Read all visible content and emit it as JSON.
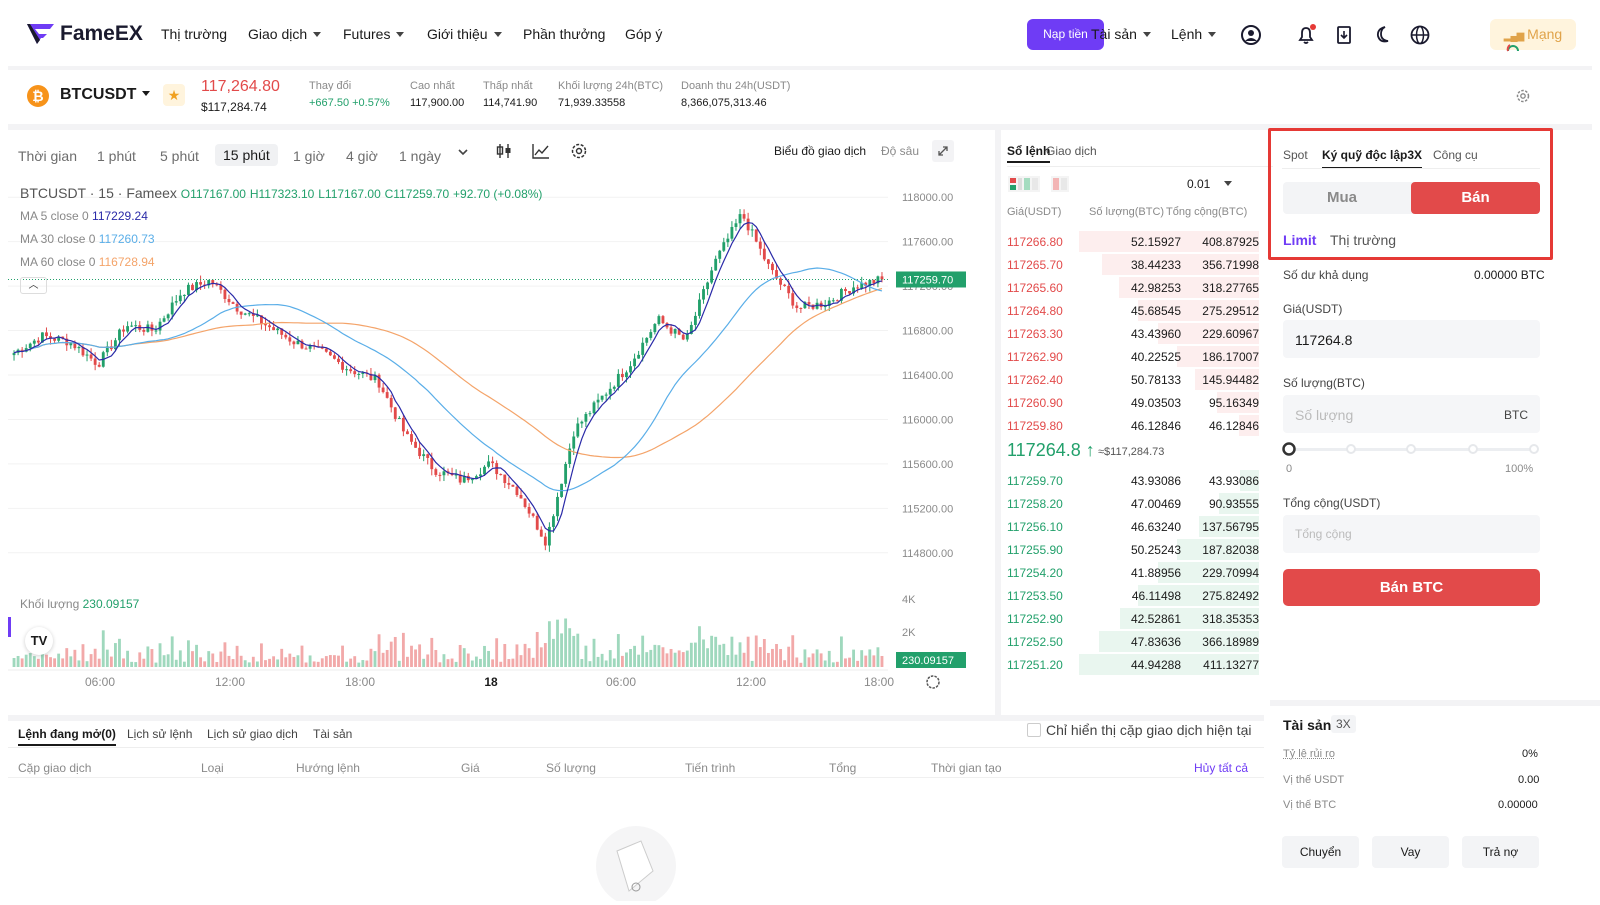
{
  "nav": {
    "brand": "FameEX",
    "items": [
      "Thị trường",
      "Giao dịch",
      "Futures",
      "Giới thiệu",
      "Phần thưởng",
      "Góp ý"
    ],
    "deposit": "Nạp tiền",
    "assets": "Tài sản",
    "orders": "Lệnh",
    "network": "Mạng"
  },
  "ticker": {
    "pair": "BTCUSDT",
    "price": "117,264.80",
    "price_usd": "$117,284.74",
    "change_label": "Thay đổi",
    "change_value": "+667.50 +0.57%",
    "high_label": "Cao nhất",
    "high_value": "117,900.00",
    "low_label": "Thấp nhất",
    "low_value": "114,741.90",
    "vol_label": "Khối lượng 24h(BTC)",
    "vol_value": "71,939.33558",
    "turnover_label": "Doanh thu 24h(USDT)",
    "turnover_value": "8,366,075,313.46"
  },
  "chart": {
    "timeframes": [
      "Thời gian",
      "1 phút",
      "5 phút",
      "15 phút",
      "1 giờ",
      "4 giờ",
      "1 ngày"
    ],
    "active_timeframe": "15 phút",
    "tab_trading": "Biểu đồ giao dịch",
    "tab_depth": "Độ sâu",
    "ohlc": {
      "symbol": "BTCUSDT · 15 · Fameex",
      "o": "O117167.00",
      "h": "H117323.10",
      "l": "L117167.00",
      "c": "C117259.70",
      "chg": "+92.70 (+0.08%)"
    },
    "ma5": {
      "label": "MA 5 close 0",
      "value": "117229.24",
      "color": "#2a2aa8"
    },
    "ma30": {
      "label": "MA 30 close 0",
      "value": "117260.73",
      "color": "#5aaee8"
    },
    "ma60": {
      "label": "MA 60 close 0",
      "value": "116728.94",
      "color": "#f4a46a"
    },
    "volume": {
      "label": "Khối lượng",
      "value": "230.09157"
    },
    "price_axis": [
      "118000.00",
      "117600.00",
      "117200.00",
      "116800.00",
      "116400.00",
      "116000.00",
      "115600.00",
      "115200.00",
      "114800.00"
    ],
    "vol_axis": [
      "4K",
      "2K"
    ],
    "time_axis": [
      "06:00",
      "12:00",
      "18:00",
      "18",
      "06:00",
      "12:00",
      "18:00"
    ],
    "last_price_tag": "117259.70",
    "last_vol_tag": "230.09157"
  },
  "chart_data": {
    "type": "candlestick",
    "series": [
      {
        "name": "MA 5 close 0",
        "value": 117229.24
      },
      {
        "name": "MA 30 close 0",
        "value": 117260.73
      },
      {
        "name": "MA 60 close 0",
        "value": 116728.94
      }
    ],
    "ylim": [
      114600,
      118200
    ],
    "x": [
      "06:00",
      "12:00",
      "18:00",
      "18",
      "06:00",
      "12:00",
      "18:00"
    ],
    "close_trend": [
      116600,
      116750,
      116700,
      116500,
      116850,
      116800,
      117150,
      117250,
      117000,
      116850,
      116700,
      116600,
      116450,
      116350,
      115850,
      115550,
      115450,
      115600,
      115350,
      114900,
      115900,
      116200,
      116500,
      116900,
      116700,
      117400,
      117850,
      117350,
      117000,
      117050,
      117200,
      117259.7
    ]
  },
  "orderbook": {
    "tab_book": "Sổ lệnh",
    "tab_trades": "Giao dịch",
    "precision": "0.01",
    "h_price": "Giá(USDT)",
    "h_amount": "Số lượng(BTC)",
    "h_total": "Tổng cộng(BTC)",
    "asks": [
      [
        "117266.80",
        "52.15927",
        "408.87925"
      ],
      [
        "117265.70",
        "38.44233",
        "356.71998"
      ],
      [
        "117265.60",
        "42.98253",
        "318.27765"
      ],
      [
        "117264.80",
        "45.68545",
        "275.29512"
      ],
      [
        "117263.30",
        "43.43960",
        "229.60967"
      ],
      [
        "117262.90",
        "40.22525",
        "186.17007"
      ],
      [
        "117262.40",
        "50.78133",
        "145.94482"
      ],
      [
        "117260.90",
        "49.03503",
        "95.16349"
      ],
      [
        "117259.80",
        "46.12846",
        "46.12846"
      ]
    ],
    "mid_price": "117264.8",
    "mid_arrow": "↑",
    "mid_usd": "≈$117,284.73",
    "bids": [
      [
        "117259.70",
        "43.93086",
        "43.93086"
      ],
      [
        "117258.20",
        "47.00469",
        "90.93555"
      ],
      [
        "117256.10",
        "46.63240",
        "137.56795"
      ],
      [
        "117255.90",
        "50.25243",
        "187.82038"
      ],
      [
        "117254.20",
        "41.88956",
        "229.70994"
      ],
      [
        "117253.50",
        "46.11498",
        "275.82492"
      ],
      [
        "117252.90",
        "42.52861",
        "318.35353"
      ],
      [
        "117252.50",
        "47.83636",
        "366.18989"
      ],
      [
        "117251.20",
        "44.94288",
        "411.13277"
      ]
    ]
  },
  "trade": {
    "tabs": [
      "Spot",
      "Ký quỹ độc lập3X",
      "Công cụ"
    ],
    "buy": "Mua",
    "sell": "Bán",
    "limit": "Limit",
    "market": "Thị trường",
    "available_label": "Số dư khả dụng",
    "available_value": "0.00000 BTC",
    "price_label": "Giá(USDT)",
    "price_value": "117264.8",
    "qty_label": "Số lượng(BTC)",
    "qty_placeholder": "Số lượng",
    "qty_unit": "BTC",
    "slider_min": "0",
    "slider_max": "100%",
    "slider_value": 0,
    "total_label": "Tổng cộng(USDT)",
    "total_placeholder": "Tổng cộng",
    "submit": "Bán BTC"
  },
  "orders": {
    "tabs": [
      "Lệnh đang mở(0)",
      "Lịch sử lệnh",
      "Lịch sử giao dịch",
      "Tài sản"
    ],
    "filter_label": "Chỉ hiển thị cặp giao dịch hiện tại",
    "columns": [
      "Cặp giao dịch",
      "Loại",
      "Hướng lệnh",
      "Giá",
      "Số lượng",
      "Tiến trình",
      "Tổng",
      "Thời gian tạo"
    ],
    "cancel_all": "Hủy tất cả"
  },
  "assets": {
    "title": "Tài sản",
    "leverage": "3X",
    "risk_label": "Tỷ lệ rủi ro",
    "risk_value": "0%",
    "usdt_label": "Vị thế USDT",
    "usdt_value": "0.00",
    "btc_label": "Vị thế BTC",
    "btc_value": "0.00000",
    "transfer": "Chuyển",
    "borrow": "Vay",
    "repay": "Trả nợ"
  },
  "colors": {
    "up": "#22a06b",
    "down": "#e24a4a",
    "accent": "#6f3cf5"
  }
}
